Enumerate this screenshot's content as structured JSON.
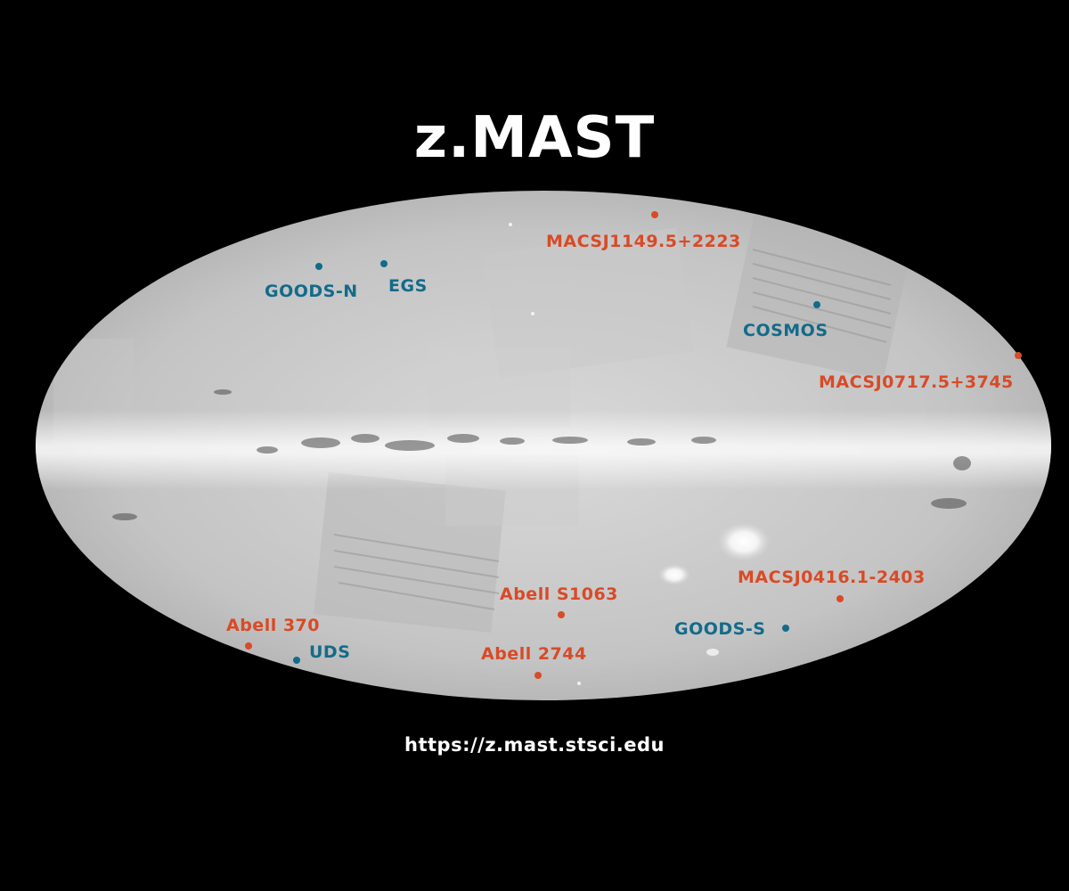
{
  "title": "z.MAST",
  "url": "https://z.mast.stsci.edu",
  "colors": {
    "background": "#000000",
    "title": "#ffffff",
    "field": "#136b8a",
    "cluster": "#d94a26"
  },
  "fields": [
    {
      "name": "GOODS-N"
    },
    {
      "name": "EGS"
    },
    {
      "name": "COSMOS"
    },
    {
      "name": "GOODS-S"
    },
    {
      "name": "UDS"
    }
  ],
  "clusters": [
    {
      "name": "MACSJ1149.5+2223"
    },
    {
      "name": "MACSJ0717.5+3745"
    },
    {
      "name": "MACSJ0416.1-2403"
    },
    {
      "name": "Abell S1063"
    },
    {
      "name": "Abell 370"
    },
    {
      "name": "Abell 2744"
    }
  ]
}
